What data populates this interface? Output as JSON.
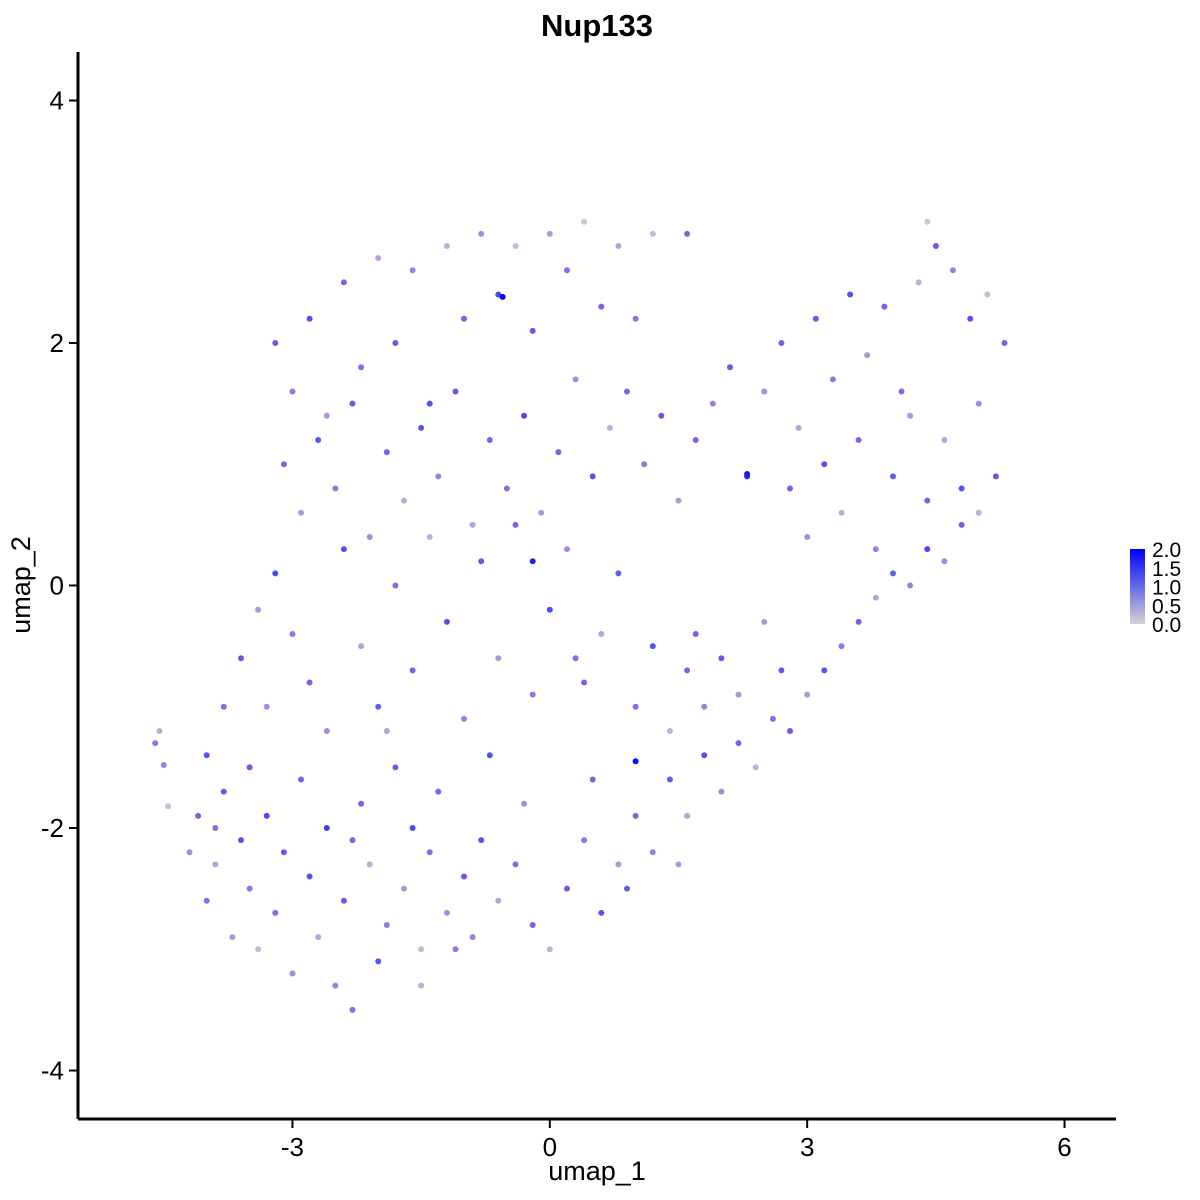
{
  "chart_data": {
    "type": "scatter",
    "title": "Nup133",
    "xlabel": "umap_1",
    "ylabel": "umap_2",
    "xlim": [
      -5.5,
      6.6
    ],
    "ylim": [
      -4.4,
      4.4
    ],
    "x_ticks": [
      -3,
      0,
      3,
      6
    ],
    "x_tick_labels": [
      "-3",
      "0",
      "3",
      "6"
    ],
    "y_ticks": [
      -4,
      -2,
      0,
      2,
      4
    ],
    "y_tick_labels": [
      "-4",
      "-2",
      "0",
      "2",
      "4"
    ],
    "grid": false,
    "legend_position": "right",
    "color_scale": {
      "low_color": "#d3d3d3",
      "high_color": "#0000ff",
      "min": 0.0,
      "max": 2.0,
      "ticks": [
        0.0,
        0.5,
        1.0,
        1.5,
        2.0
      ],
      "tick_labels": [
        "0.0",
        "0.5",
        "1.0",
        "1.5",
        "2.0"
      ]
    },
    "points": [
      [
        -4.6,
        -1.3,
        0.8
      ],
      [
        -4.55,
        -1.2,
        0.3
      ],
      [
        -4.5,
        -1.48,
        0.7
      ],
      [
        -4.45,
        -1.82,
        0.2
      ],
      [
        -4.2,
        -2.2,
        0.6
      ],
      [
        -4.1,
        -1.9,
        1.0
      ],
      [
        -4.0,
        -2.6,
        0.9
      ],
      [
        -3.9,
        -2.3,
        0.4
      ],
      [
        -3.8,
        -1.7,
        1.1
      ],
      [
        -3.7,
        -2.9,
        0.5
      ],
      [
        -3.6,
        -2.1,
        1.2
      ],
      [
        -3.5,
        -2.5,
        0.8
      ],
      [
        -3.4,
        -3.0,
        0.2
      ],
      [
        -3.3,
        -1.9,
        1.3
      ],
      [
        -3.2,
        -2.7,
        0.9
      ],
      [
        -3.1,
        -2.2,
        1.1
      ],
      [
        -3.0,
        -3.2,
        0.6
      ],
      [
        -2.9,
        -1.6,
        1.0
      ],
      [
        -2.8,
        -2.4,
        1.2
      ],
      [
        -2.7,
        -2.9,
        0.4
      ],
      [
        -2.6,
        -2.0,
        1.4
      ],
      [
        -2.5,
        -3.3,
        0.7
      ],
      [
        -2.4,
        -2.6,
        1.1
      ],
      [
        -2.3,
        -3.5,
        0.9
      ],
      [
        -2.2,
        -1.8,
        1.0
      ],
      [
        -2.1,
        -2.3,
        0.3
      ],
      [
        -2.0,
        -3.1,
        1.2
      ],
      [
        -1.9,
        -2.8,
        0.8
      ],
      [
        -1.8,
        -1.5,
        1.1
      ],
      [
        -1.7,
        -2.5,
        0.5
      ],
      [
        -1.6,
        -2.0,
        1.3
      ],
      [
        -1.5,
        -3.0,
        0.2
      ],
      [
        -1.4,
        -2.2,
        0.9
      ],
      [
        -1.3,
        -1.7,
        1.0
      ],
      [
        -1.2,
        -2.7,
        0.6
      ],
      [
        -1.0,
        -2.4,
        1.1
      ],
      [
        -0.9,
        -2.9,
        0.7
      ],
      [
        -0.8,
        -2.1,
        1.2
      ],
      [
        -0.6,
        -2.6,
        0.4
      ],
      [
        -0.4,
        -2.3,
        0.9
      ],
      [
        -0.2,
        -2.8,
        1.0
      ],
      [
        0.0,
        -3.0,
        0.3
      ],
      [
        0.2,
        -2.5,
        1.1
      ],
      [
        0.4,
        -2.1,
        0.8
      ],
      [
        0.6,
        -2.7,
        1.2
      ],
      [
        0.8,
        -2.3,
        0.5
      ],
      [
        1.0,
        -1.9,
        1.0
      ],
      [
        1.2,
        -2.2,
        0.7
      ],
      [
        1.4,
        -1.6,
        1.1
      ],
      [
        1.6,
        -1.9,
        0.4
      ],
      [
        1.8,
        -1.4,
        1.2
      ],
      [
        2.0,
        -1.7,
        0.6
      ],
      [
        2.2,
        -1.3,
        1.0
      ],
      [
        2.4,
        -1.5,
        0.3
      ],
      [
        2.6,
        -1.1,
        0.9
      ],
      [
        2.8,
        -1.2,
        1.1
      ],
      [
        3.0,
        -0.9,
        0.5
      ],
      [
        3.2,
        -0.7,
        1.2
      ],
      [
        3.4,
        -0.5,
        0.8
      ],
      [
        3.6,
        -0.3,
        1.0
      ],
      [
        3.8,
        -0.1,
        0.4
      ],
      [
        4.0,
        0.1,
        1.1
      ],
      [
        4.2,
        0.0,
        0.7
      ],
      [
        4.4,
        0.3,
        1.3
      ],
      [
        4.6,
        0.2,
        0.6
      ],
      [
        4.8,
        0.5,
        1.0
      ],
      [
        5.0,
        0.6,
        0.3
      ],
      [
        5.2,
        0.9,
        1.1
      ],
      [
        -4.0,
        -1.4,
        1.2
      ],
      [
        -3.8,
        -1.0,
        0.9
      ],
      [
        -3.6,
        -0.6,
        1.1
      ],
      [
        -3.4,
        -0.2,
        0.5
      ],
      [
        -3.2,
        0.1,
        1.3
      ],
      [
        -3.0,
        -0.4,
        0.8
      ],
      [
        -2.8,
        -0.8,
        1.0
      ],
      [
        -2.6,
        -1.2,
        0.6
      ],
      [
        -2.4,
        0.3,
        1.2
      ],
      [
        -2.2,
        -0.5,
        0.4
      ],
      [
        -2.0,
        -1.0,
        1.1
      ],
      [
        -1.8,
        0.0,
        0.9
      ],
      [
        -1.6,
        -0.7,
        1.0
      ],
      [
        -1.4,
        0.4,
        0.3
      ],
      [
        -1.2,
        -0.3,
        1.2
      ],
      [
        -1.0,
        -1.1,
        0.7
      ],
      [
        -0.8,
        0.2,
        1.1
      ],
      [
        -0.6,
        -0.6,
        0.5
      ],
      [
        -0.4,
        0.5,
        1.0
      ],
      [
        -0.2,
        -0.9,
        0.8
      ],
      [
        0.0,
        -0.2,
        1.3
      ],
      [
        0.2,
        0.3,
        0.6
      ],
      [
        0.4,
        -0.8,
        1.0
      ],
      [
        0.6,
        -0.4,
        0.4
      ],
      [
        0.8,
        0.1,
        1.1
      ],
      [
        1.0,
        -1.0,
        0.9
      ],
      [
        1.2,
        -0.5,
        1.2
      ],
      [
        1.4,
        -1.2,
        0.3
      ],
      [
        1.6,
        -0.7,
        1.0
      ],
      [
        1.8,
        -1.0,
        0.7
      ],
      [
        2.0,
        -0.6,
        1.1
      ],
      [
        2.2,
        -0.9,
        0.5
      ],
      [
        -3.2,
        2.0,
        1.1
      ],
      [
        -3.0,
        1.6,
        0.8
      ],
      [
        -2.8,
        2.2,
        1.2
      ],
      [
        -2.6,
        1.4,
        0.5
      ],
      [
        -2.4,
        2.5,
        1.0
      ],
      [
        -2.2,
        1.8,
        0.9
      ],
      [
        -2.0,
        2.7,
        0.4
      ],
      [
        -1.8,
        2.0,
        1.1
      ],
      [
        -1.6,
        2.6,
        0.7
      ],
      [
        -1.4,
        1.5,
        1.2
      ],
      [
        -1.2,
        2.8,
        0.3
      ],
      [
        -1.0,
        2.2,
        1.0
      ],
      [
        -0.8,
        2.9,
        0.6
      ],
      [
        -0.6,
        2.4,
        1.3
      ],
      [
        -0.4,
        2.8,
        0.2
      ],
      [
        -0.2,
        2.1,
        1.1
      ],
      [
        0.0,
        2.9,
        0.5
      ],
      [
        0.2,
        2.6,
        0.9
      ],
      [
        0.4,
        3.0,
        0.1
      ],
      [
        0.6,
        2.3,
        1.0
      ],
      [
        0.8,
        2.8,
        0.4
      ],
      [
        1.0,
        2.2,
        0.8
      ],
      [
        1.2,
        2.9,
        0.2
      ],
      [
        1.6,
        2.9,
        1.0
      ],
      [
        -3.1,
        1.0,
        1.0
      ],
      [
        -2.9,
        0.6,
        0.5
      ],
      [
        -2.7,
        1.2,
        1.2
      ],
      [
        -2.5,
        0.8,
        0.8
      ],
      [
        -2.3,
        1.5,
        1.1
      ],
      [
        -2.1,
        0.4,
        0.6
      ],
      [
        -1.9,
        1.1,
        1.0
      ],
      [
        -1.7,
        0.7,
        0.3
      ],
      [
        -1.5,
        1.3,
        1.2
      ],
      [
        -1.3,
        0.9,
        0.7
      ],
      [
        -1.1,
        1.6,
        1.1
      ],
      [
        -0.9,
        0.5,
        0.4
      ],
      [
        -0.7,
        1.2,
        1.0
      ],
      [
        -0.5,
        0.8,
        0.9
      ],
      [
        -0.3,
        1.4,
        1.3
      ],
      [
        -0.1,
        0.6,
        0.5
      ],
      [
        0.1,
        1.1,
        1.0
      ],
      [
        0.3,
        1.7,
        0.6
      ],
      [
        0.5,
        0.9,
        1.2
      ],
      [
        0.7,
        1.3,
        0.3
      ],
      [
        0.9,
        1.6,
        1.0
      ],
      [
        1.1,
        1.0,
        0.8
      ],
      [
        1.3,
        1.4,
        1.1
      ],
      [
        1.5,
        0.7,
        0.5
      ],
      [
        1.7,
        1.2,
        1.0
      ],
      [
        1.9,
        1.5,
        0.7
      ],
      [
        2.1,
        1.8,
        1.1
      ],
      [
        2.3,
        0.9,
        1.6
      ],
      [
        2.5,
        1.6,
        0.6
      ],
      [
        2.7,
        2.0,
        1.0
      ],
      [
        2.9,
        1.3,
        0.4
      ],
      [
        3.1,
        2.2,
        1.1
      ],
      [
        3.3,
        1.7,
        0.8
      ],
      [
        3.5,
        2.4,
        1.2
      ],
      [
        3.7,
        1.9,
        0.5
      ],
      [
        3.9,
        2.3,
        1.0
      ],
      [
        4.1,
        1.6,
        0.9
      ],
      [
        4.3,
        2.5,
        0.3
      ],
      [
        4.5,
        2.8,
        1.1
      ],
      [
        4.7,
        2.6,
        0.7
      ],
      [
        4.9,
        2.2,
        1.2
      ],
      [
        5.1,
        2.4,
        0.2
      ],
      [
        5.3,
        2.0,
        1.0
      ],
      [
        4.4,
        3.0,
        0.1
      ],
      [
        2.8,
        0.8,
        1.0
      ],
      [
        3.0,
        0.4,
        0.6
      ],
      [
        3.2,
        1.0,
        1.2
      ],
      [
        3.4,
        0.6,
        0.3
      ],
      [
        3.6,
        1.2,
        1.0
      ],
      [
        3.8,
        0.3,
        0.7
      ],
      [
        4.0,
        0.9,
        1.1
      ],
      [
        4.2,
        1.4,
        0.5
      ],
      [
        4.4,
        0.7,
        1.0
      ],
      [
        4.6,
        1.2,
        0.4
      ],
      [
        4.8,
        0.8,
        1.2
      ],
      [
        5.0,
        1.5,
        0.6
      ],
      [
        -0.55,
        2.38,
        2.0
      ],
      [
        2.3,
        0.92,
        1.8
      ],
      [
        -0.2,
        0.2,
        1.7
      ],
      [
        1.0,
        -1.45,
        1.9
      ],
      [
        -3.3,
        -1.0,
        0.6
      ],
      [
        -3.5,
        -1.5,
        1.1
      ],
      [
        -3.9,
        -2.0,
        0.9
      ],
      [
        -2.3,
        -2.1,
        1.0
      ],
      [
        -1.9,
        -1.2,
        0.4
      ],
      [
        -0.7,
        -1.4,
        1.2
      ],
      [
        -0.3,
        -1.8,
        0.6
      ],
      [
        0.5,
        -1.6,
        1.0
      ],
      [
        1.5,
        -2.3,
        0.5
      ],
      [
        0.9,
        -2.5,
        1.1
      ],
      [
        -1.1,
        -3.0,
        0.8
      ],
      [
        -1.5,
        -3.3,
        0.3
      ],
      [
        0.3,
        -0.6,
        0.9
      ],
      [
        1.7,
        -0.4,
        1.0
      ],
      [
        2.5,
        -0.3,
        0.5
      ],
      [
        2.7,
        -0.7,
        1.1
      ]
    ]
  }
}
